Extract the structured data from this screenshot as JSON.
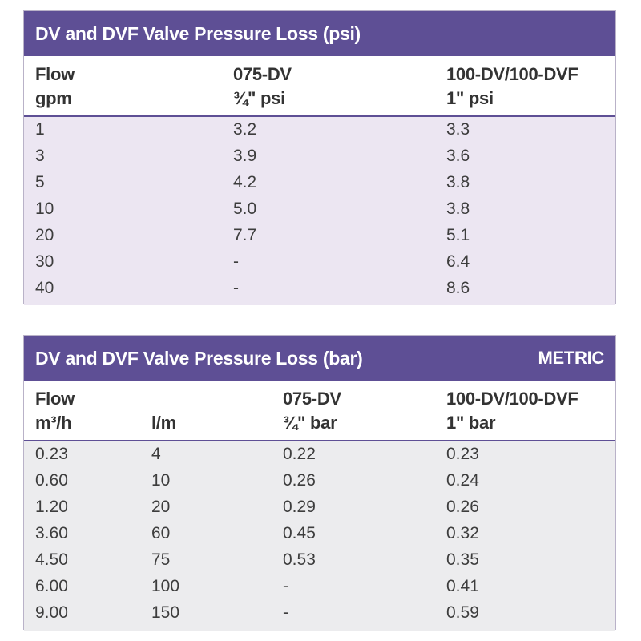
{
  "psi_table": {
    "title": "DV and DVF Valve Pressure Loss (psi)",
    "headers": [
      {
        "line1": "Flow",
        "line2": "gpm"
      },
      {
        "line1": "075-DV",
        "line2": "¾\" psi"
      },
      {
        "line1": "100-DV/100-DVF",
        "line2": "1\" psi"
      }
    ],
    "rows": [
      [
        "1",
        "3.2",
        "3.3"
      ],
      [
        "3",
        "3.9",
        "3.6"
      ],
      [
        "5",
        "4.2",
        "3.8"
      ],
      [
        "10",
        "5.0",
        "3.8"
      ],
      [
        "20",
        "7.7",
        "5.1"
      ],
      [
        "30",
        "-",
        "6.4"
      ],
      [
        "40",
        "-",
        "8.6"
      ]
    ]
  },
  "bar_table": {
    "title": "DV and DVF Valve Pressure Loss (bar)",
    "tag": "METRIC",
    "headers": [
      {
        "line1": "Flow",
        "line2": "m³/h"
      },
      {
        "line1": "",
        "line2": "l/m"
      },
      {
        "line1": "075-DV",
        "line2": "¾\" bar"
      },
      {
        "line1": "100-DV/100-DVF",
        "line2": "1\" bar"
      }
    ],
    "rows": [
      [
        "0.23",
        "4",
        "0.22",
        "0.23"
      ],
      [
        "0.60",
        "10",
        "0.26",
        "0.24"
      ],
      [
        "1.20",
        "20",
        "0.29",
        "0.26"
      ],
      [
        "3.60",
        "60",
        "0.45",
        "0.32"
      ],
      [
        "4.50",
        "75",
        "0.53",
        "0.35"
      ],
      [
        "6.00",
        "100",
        "-",
        "0.41"
      ],
      [
        "9.00",
        "150",
        "-",
        "0.59"
      ]
    ]
  },
  "colors": {
    "title_bar": "#5e4f95",
    "psi_body": "#ece6f2",
    "bar_body": "#ececee"
  }
}
